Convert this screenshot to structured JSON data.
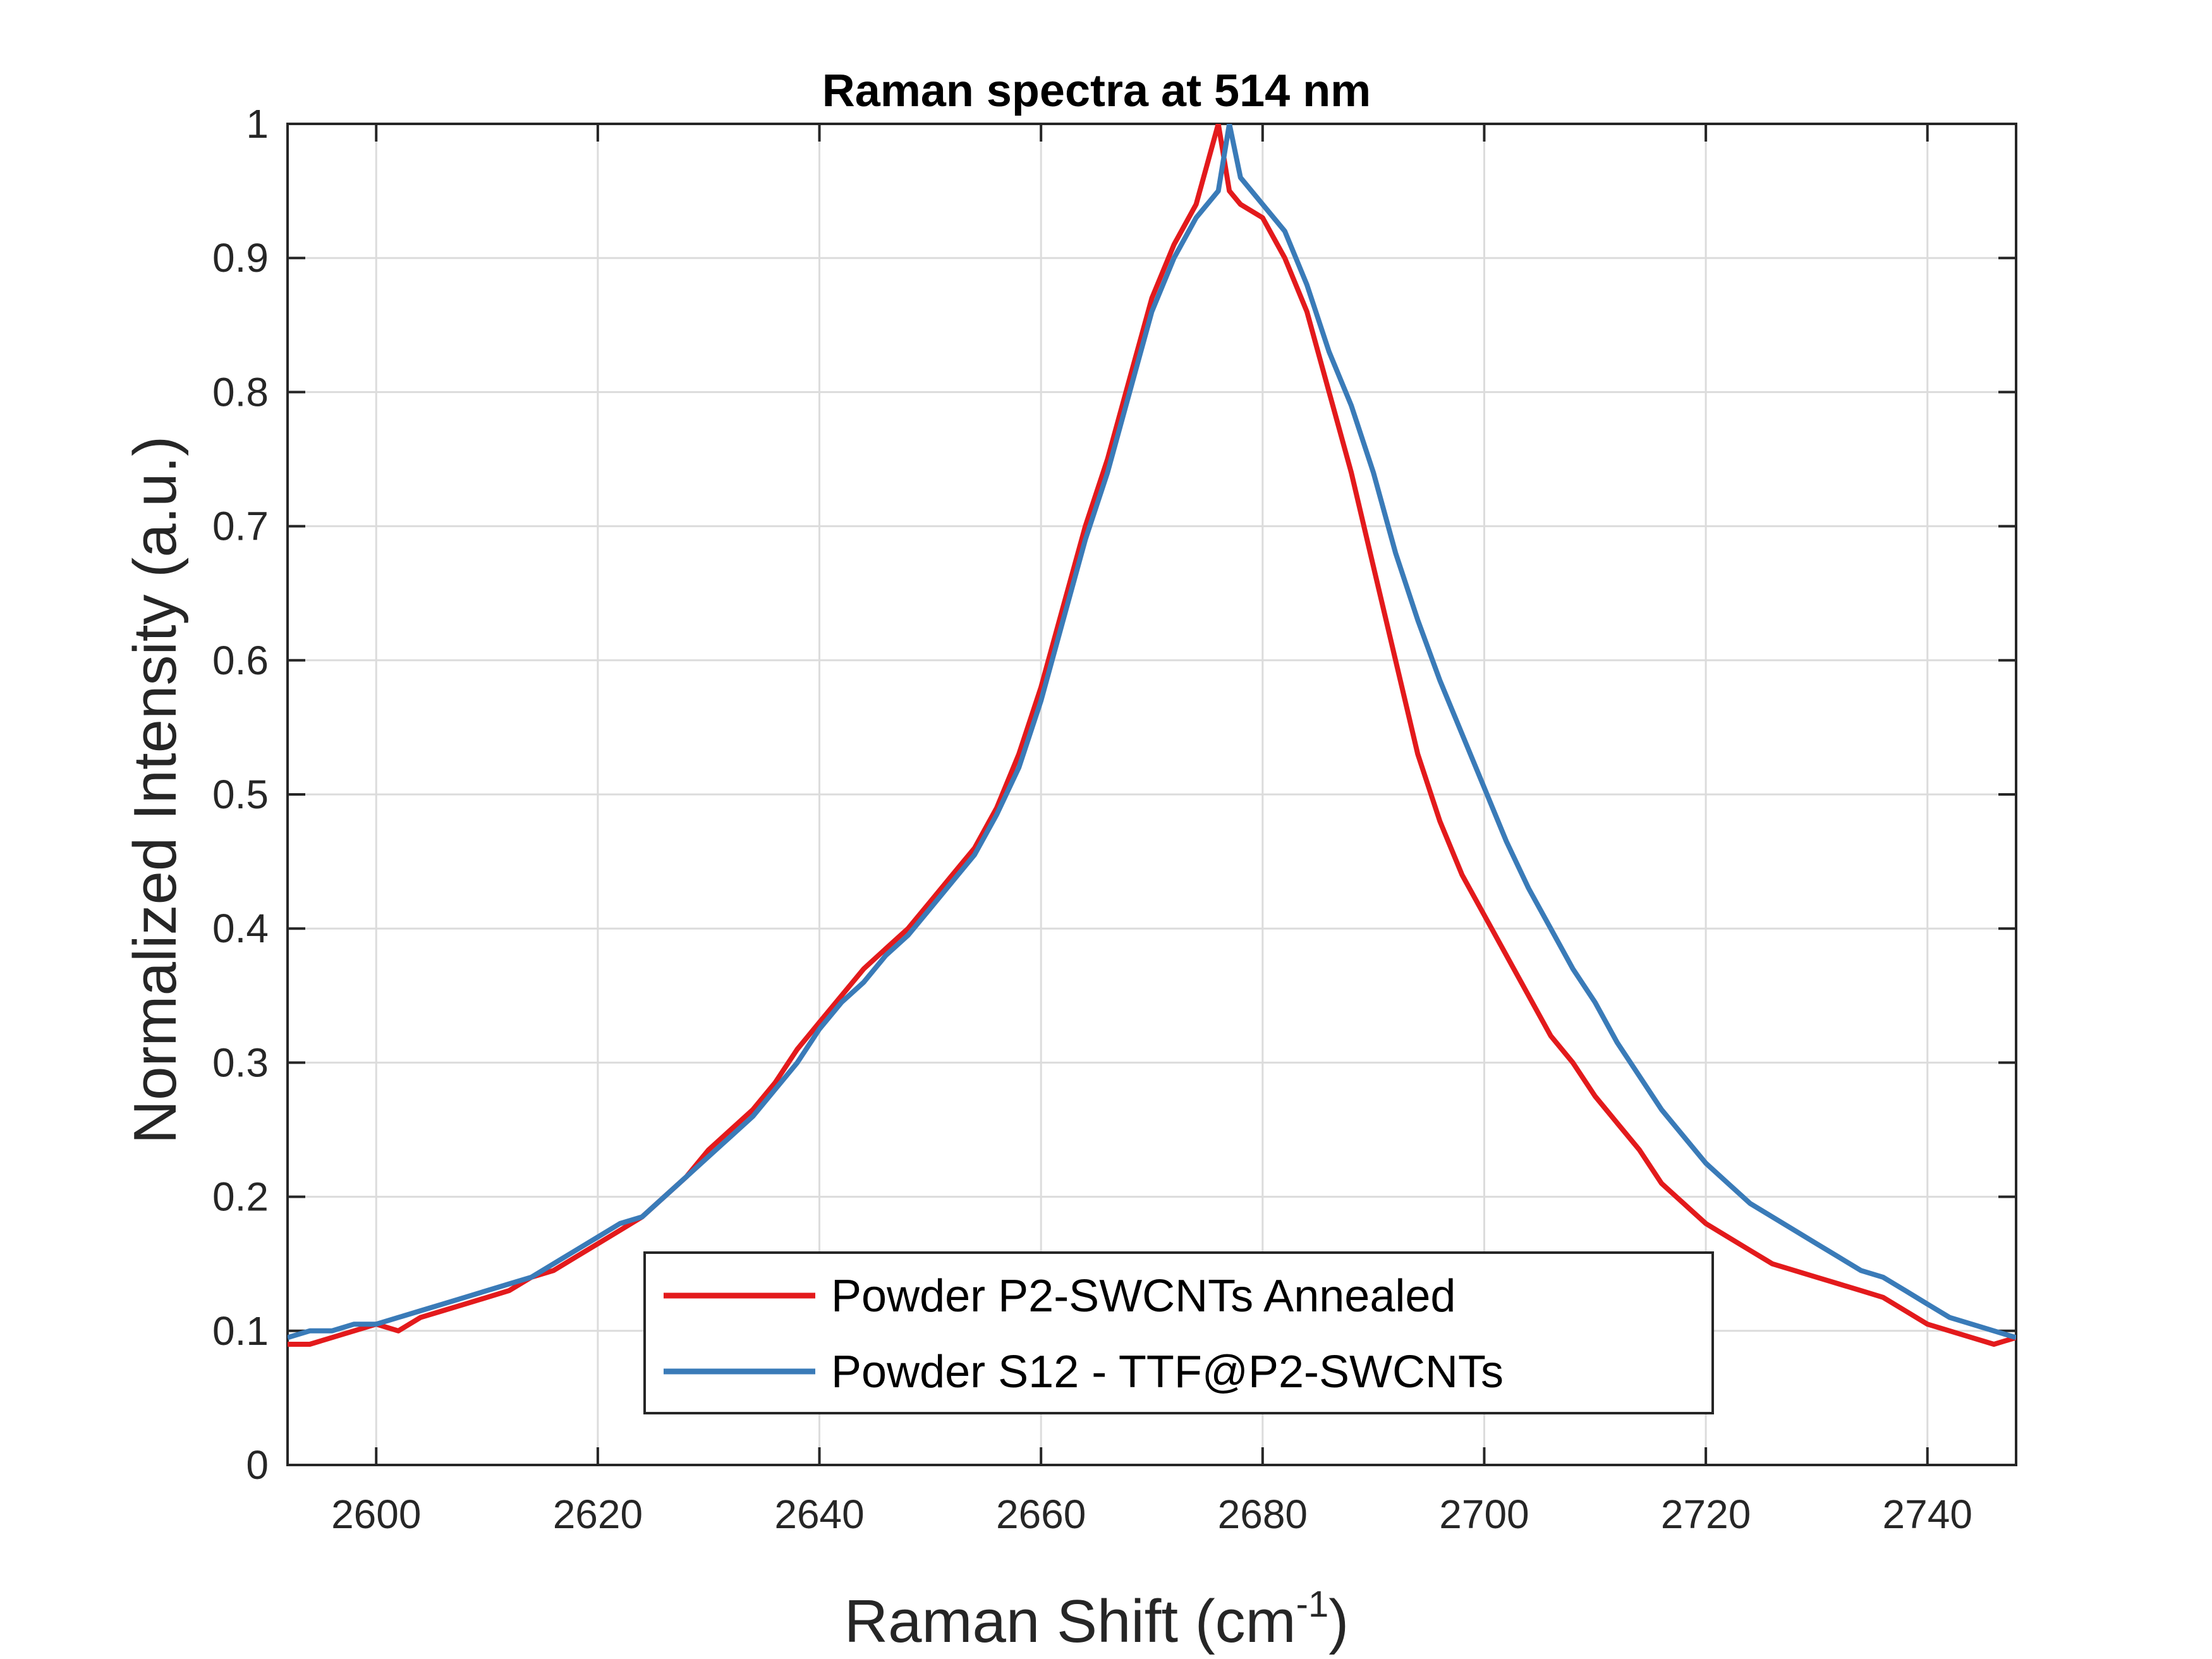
{
  "chart_data": {
    "type": "line",
    "title": "Raman spectra at 514 nm",
    "xlabel_main": "Raman Shift (cm",
    "xlabel_sup": "-1",
    "xlabel_close": ")",
    "ylabel": "Normalized Intensity (a.u.)",
    "xlim": [
      2592,
      2748
    ],
    "ylim": [
      0,
      1
    ],
    "xticks": [
      2600,
      2620,
      2640,
      2660,
      2680,
      2700,
      2720,
      2740
    ],
    "xtick_labels": [
      "2600",
      "2620",
      "2640",
      "2660",
      "2680",
      "2700",
      "2720",
      "2740"
    ],
    "yticks": [
      0,
      0.1,
      0.2,
      0.3,
      0.4,
      0.5,
      0.6,
      0.7,
      0.8,
      0.9,
      1
    ],
    "ytick_labels": [
      "0",
      "0.1",
      "0.2",
      "0.3",
      "0.4",
      "0.5",
      "0.6",
      "0.7",
      "0.8",
      "0.9",
      "1"
    ],
    "grid": true,
    "legend_position": "bottom-center",
    "colors": {
      "series1": "#e31a1c",
      "series2": "#3a7bb8",
      "axis": "#262626",
      "grid": "#dcdcdc"
    },
    "series": [
      {
        "name": "Powder P2-SWCNTs Annealed",
        "color": "#e31a1c",
        "x": [
          2592,
          2594,
          2596,
          2598,
          2600,
          2602,
          2604,
          2606,
          2608,
          2610,
          2612,
          2614,
          2616,
          2618,
          2620,
          2622,
          2624,
          2626,
          2628,
          2630,
          2632,
          2634,
          2636,
          2638,
          2640,
          2642,
          2644,
          2646,
          2648,
          2650,
          2652,
          2654,
          2656,
          2658,
          2660,
          2662,
          2664,
          2666,
          2668,
          2670,
          2672,
          2674,
          2675,
          2676,
          2677,
          2678,
          2680,
          2682,
          2684,
          2686,
          2688,
          2690,
          2692,
          2694,
          2696,
          2698,
          2700,
          2702,
          2704,
          2706,
          2708,
          2710,
          2712,
          2714,
          2716,
          2718,
          2720,
          2722,
          2724,
          2726,
          2728,
          2730,
          2732,
          2734,
          2736,
          2738,
          2740,
          2742,
          2744,
          2746,
          2748
        ],
        "y": [
          0.09,
          0.09,
          0.095,
          0.1,
          0.105,
          0.1,
          0.11,
          0.115,
          0.12,
          0.125,
          0.13,
          0.14,
          0.145,
          0.155,
          0.165,
          0.175,
          0.185,
          0.2,
          0.215,
          0.235,
          0.25,
          0.265,
          0.285,
          0.31,
          0.33,
          0.35,
          0.37,
          0.385,
          0.4,
          0.42,
          0.44,
          0.46,
          0.49,
          0.53,
          0.58,
          0.64,
          0.7,
          0.75,
          0.81,
          0.87,
          0.91,
          0.94,
          0.97,
          1.0,
          0.95,
          0.94,
          0.93,
          0.9,
          0.86,
          0.8,
          0.74,
          0.67,
          0.6,
          0.53,
          0.48,
          0.44,
          0.41,
          0.38,
          0.35,
          0.32,
          0.3,
          0.275,
          0.255,
          0.235,
          0.21,
          0.195,
          0.18,
          0.17,
          0.16,
          0.15,
          0.145,
          0.14,
          0.135,
          0.13,
          0.125,
          0.115,
          0.105,
          0.1,
          0.095,
          0.09,
          0.095
        ]
      },
      {
        "name": "Powder S12 - TTF@P2-SWCNTs",
        "color": "#3a7bb8",
        "x": [
          2592,
          2594,
          2596,
          2598,
          2600,
          2602,
          2604,
          2606,
          2608,
          2610,
          2612,
          2614,
          2616,
          2618,
          2620,
          2622,
          2624,
          2626,
          2628,
          2630,
          2632,
          2634,
          2636,
          2638,
          2640,
          2642,
          2644,
          2646,
          2648,
          2650,
          2652,
          2654,
          2656,
          2658,
          2660,
          2662,
          2664,
          2666,
          2668,
          2670,
          2672,
          2674,
          2676,
          2677,
          2678,
          2680,
          2682,
          2684,
          2686,
          2688,
          2690,
          2692,
          2694,
          2696,
          2698,
          2700,
          2702,
          2704,
          2706,
          2708,
          2710,
          2712,
          2714,
          2716,
          2718,
          2720,
          2722,
          2724,
          2726,
          2728,
          2730,
          2732,
          2734,
          2736,
          2738,
          2740,
          2742,
          2744,
          2746,
          2748
        ],
        "y": [
          0.095,
          0.1,
          0.1,
          0.105,
          0.105,
          0.11,
          0.115,
          0.12,
          0.125,
          0.13,
          0.135,
          0.14,
          0.15,
          0.16,
          0.17,
          0.18,
          0.185,
          0.2,
          0.215,
          0.23,
          0.245,
          0.26,
          0.28,
          0.3,
          0.325,
          0.345,
          0.36,
          0.38,
          0.395,
          0.415,
          0.435,
          0.455,
          0.485,
          0.52,
          0.57,
          0.63,
          0.69,
          0.74,
          0.8,
          0.86,
          0.9,
          0.93,
          0.95,
          1.0,
          0.96,
          0.94,
          0.92,
          0.88,
          0.83,
          0.79,
          0.74,
          0.68,
          0.63,
          0.585,
          0.545,
          0.505,
          0.465,
          0.43,
          0.4,
          0.37,
          0.345,
          0.315,
          0.29,
          0.265,
          0.245,
          0.225,
          0.21,
          0.195,
          0.185,
          0.175,
          0.165,
          0.155,
          0.145,
          0.14,
          0.13,
          0.12,
          0.11,
          0.105,
          0.1,
          0.095
        ]
      }
    ]
  }
}
